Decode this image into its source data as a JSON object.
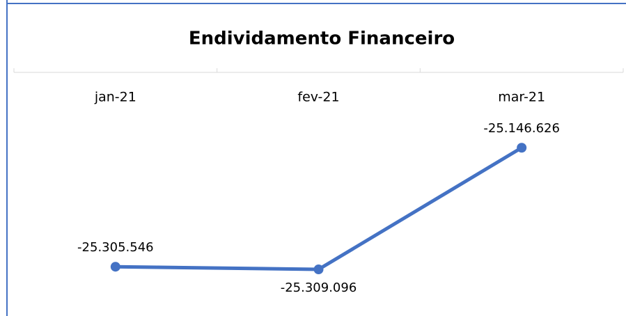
{
  "chart_data": {
    "type": "line",
    "title": "Endividamento Financeiro",
    "categories": [
      "jan-21",
      "fev-21",
      "mar-21"
    ],
    "series": [
      {
        "name": "Endividamento Financeiro",
        "color": "#4472c4",
        "values": [
          -25305546,
          -25309096,
          -25146626
        ],
        "value_labels": [
          "-25.305.546",
          "-25.309.096",
          "-25.146.626"
        ]
      }
    ],
    "ylim": [
      -25363000,
      -25046000
    ]
  }
}
